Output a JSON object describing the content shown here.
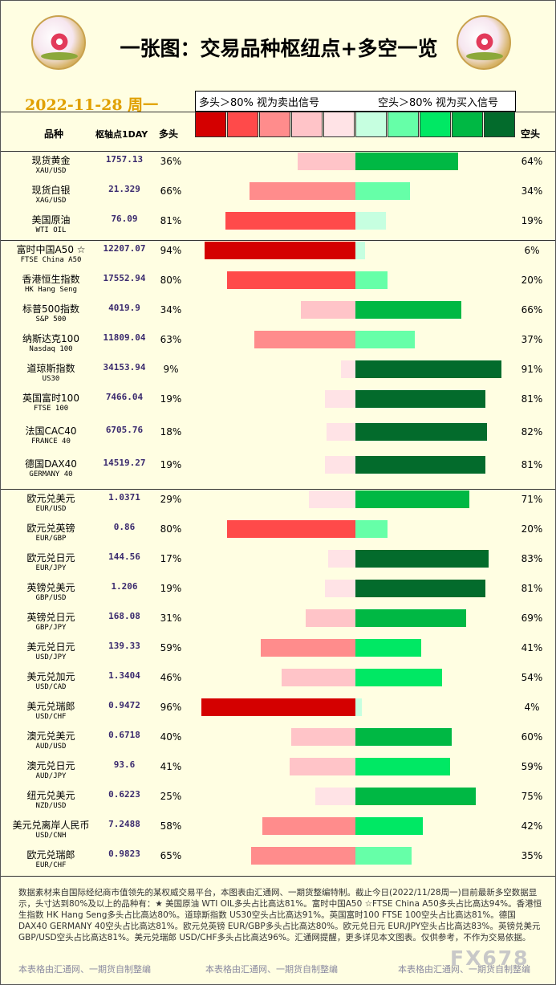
{
  "header": {
    "title": "一张图：交易品种枢纽点+多空一览",
    "date": "2022-11-28 周一",
    "legend_left": "多头＞80% 视为卖出信号",
    "legend_right": "空头＞80% 视为买入信号",
    "col_name": "品种",
    "col_pivot": "枢轴点1DAY",
    "col_long": "多头",
    "col_short": "空头",
    "scale_colors": [
      "#d40000",
      "#ff4a4a",
      "#ff8c8c",
      "#ffc4c8",
      "#ffe3e6",
      "#c6ffe0",
      "#66ffa8",
      "#00e864",
      "#00b844",
      "#036b2c"
    ]
  },
  "chart_data": {
    "type": "bar",
    "title": "",
    "groups": [
      [
        0,
        2
      ],
      [
        3,
        10
      ],
      [
        11,
        22
      ]
    ],
    "instruments": [
      {
        "name": "现货黄金",
        "code": "XAU/USD",
        "pivot": "1757.13",
        "long": 36,
        "short": 64,
        "long_label": "36%",
        "short_label": "64%"
      },
      {
        "name": "现货白银",
        "code": "XAG/USD",
        "pivot": "21.329",
        "long": 66,
        "short": 34,
        "long_label": "66%",
        "short_label": "34%"
      },
      {
        "name": "美国原油",
        "code": "WTI OIL",
        "pivot": "76.09",
        "long": 81,
        "short": 19,
        "long_label": "81%",
        "short_label": "19%"
      },
      {
        "name": "富时中国A50 ☆",
        "code": "FTSE China A50",
        "pivot": "12207.07",
        "long": 94,
        "short": 6,
        "long_label": "94%",
        "short_label": "6%"
      },
      {
        "name": "香港恒生指数",
        "code": "HK Hang Seng",
        "pivot": "17552.94",
        "long": 80,
        "short": 20,
        "long_label": "80%",
        "short_label": "20%"
      },
      {
        "name": "标普500指数",
        "code": "S&P 500",
        "pivot": "4019.9",
        "long": 34,
        "short": 66,
        "long_label": "34%",
        "short_label": "66%"
      },
      {
        "name": "纳斯达克100",
        "code": "Nasdaq 100",
        "pivot": "11809.04",
        "long": 63,
        "short": 37,
        "long_label": "63%",
        "short_label": "37%"
      },
      {
        "name": "道琼斯指数",
        "code": "US30",
        "pivot": "34153.94",
        "long": 9,
        "short": 91,
        "long_label": "9%",
        "short_label": "91%"
      },
      {
        "name": "英国富时100",
        "code": "FTSE 100",
        "pivot": "7466.04",
        "long": 19,
        "short": 81,
        "long_label": "19%",
        "short_label": "81%"
      },
      {
        "name": "法国CAC40",
        "code": "FRANCE 40",
        "pivot": "6705.76",
        "long": 18,
        "short": 82,
        "long_label": "18%",
        "short_label": "82%"
      },
      {
        "name": "德国DAX40",
        "code": "GERMANY 40",
        "pivot": "14519.27",
        "long": 19,
        "short": 81,
        "long_label": "19%",
        "short_label": "81%"
      },
      {
        "name": "欧元兑美元",
        "code": "EUR/USD",
        "pivot": "1.0371",
        "long": 29,
        "short": 71,
        "long_label": "29%",
        "short_label": "71%"
      },
      {
        "name": "欧元兑英镑",
        "code": "EUR/GBP",
        "pivot": "0.86",
        "long": 80,
        "short": 20,
        "long_label": "80%",
        "short_label": "20%"
      },
      {
        "name": "欧元兑日元",
        "code": "EUR/JPY",
        "pivot": "144.56",
        "long": 17,
        "short": 83,
        "long_label": "17%",
        "short_label": "83%"
      },
      {
        "name": "英镑兑美元",
        "code": "GBP/USD",
        "pivot": "1.206",
        "long": 19,
        "short": 81,
        "long_label": "19%",
        "short_label": "81%"
      },
      {
        "name": "英镑兑日元",
        "code": "GBP/JPY",
        "pivot": "168.08",
        "long": 31,
        "short": 69,
        "long_label": "31%",
        "short_label": "69%"
      },
      {
        "name": "美元兑日元",
        "code": "USD/JPY",
        "pivot": "139.33",
        "long": 59,
        "short": 41,
        "long_label": "59%",
        "short_label": "41%"
      },
      {
        "name": "美元兑加元",
        "code": "USD/CAD",
        "pivot": "1.3404",
        "long": 46,
        "short": 54,
        "long_label": "46%",
        "short_label": "54%"
      },
      {
        "name": "美元兑瑞郎",
        "code": "USD/CHF",
        "pivot": "0.9472",
        "long": 96,
        "short": 4,
        "long_label": "96%",
        "short_label": "4%"
      },
      {
        "name": "澳元兑美元",
        "code": "AUD/USD",
        "pivot": "0.6718",
        "long": 40,
        "short": 60,
        "long_label": "40%",
        "short_label": "60%"
      },
      {
        "name": "澳元兑日元",
        "code": "AUD/JPY",
        "pivot": "93.6",
        "long": 41,
        "short": 59,
        "long_label": "41%",
        "short_label": "59%"
      },
      {
        "name": "纽元兑美元",
        "code": "NZD/USD",
        "pivot": "0.6223",
        "long": 25,
        "short": 75,
        "long_label": "25%",
        "short_label": "75%"
      },
      {
        "name": "美元兑离岸人民币",
        "code": "USD/CNH",
        "pivot": "7.2488",
        "long": 58,
        "short": 42,
        "long_label": "58%",
        "short_label": "42%"
      },
      {
        "name": "欧元兑瑞郎",
        "code": "EUR/CHF",
        "pivot": "0.9823",
        "long": 65,
        "short": 35,
        "long_label": "65%",
        "short_label": "35%"
      }
    ]
  },
  "footer": {
    "text": "数据素材来自国际经纪商市值领先的某权威交易平台，本图表由汇通网、一期货整编特制。截止今日(2022/11/28周一)目前最新多空数据显示，头寸达到80%及以上的品种有：★ 美国原油 WTI OIL多头占比高达81%。富时中国A50 ☆FTSE China A50多头占比高达94%。香港恒生指数 HK Hang Seng多头占比高达80%。道琼斯指数 US30空头占比高达91%。英国富时100 FTSE 100空头占比高达81%。德国DAX40 GERMANY 40空头占比高达81%。欧元兑英镑 EUR/GBP多头占比高达80%。欧元兑日元 EUR/JPY空头占比高达83%。英镑兑美元 GBP/USD空头占比高达81%。美元兑瑞郎 USD/CHF多头占比高达96%。汇通网提醒，更多详见本文图表。仅供参考，不作为交易依据。",
    "watermark": "本表格由汇通网、一期货自制整编",
    "brand": "FX678"
  }
}
